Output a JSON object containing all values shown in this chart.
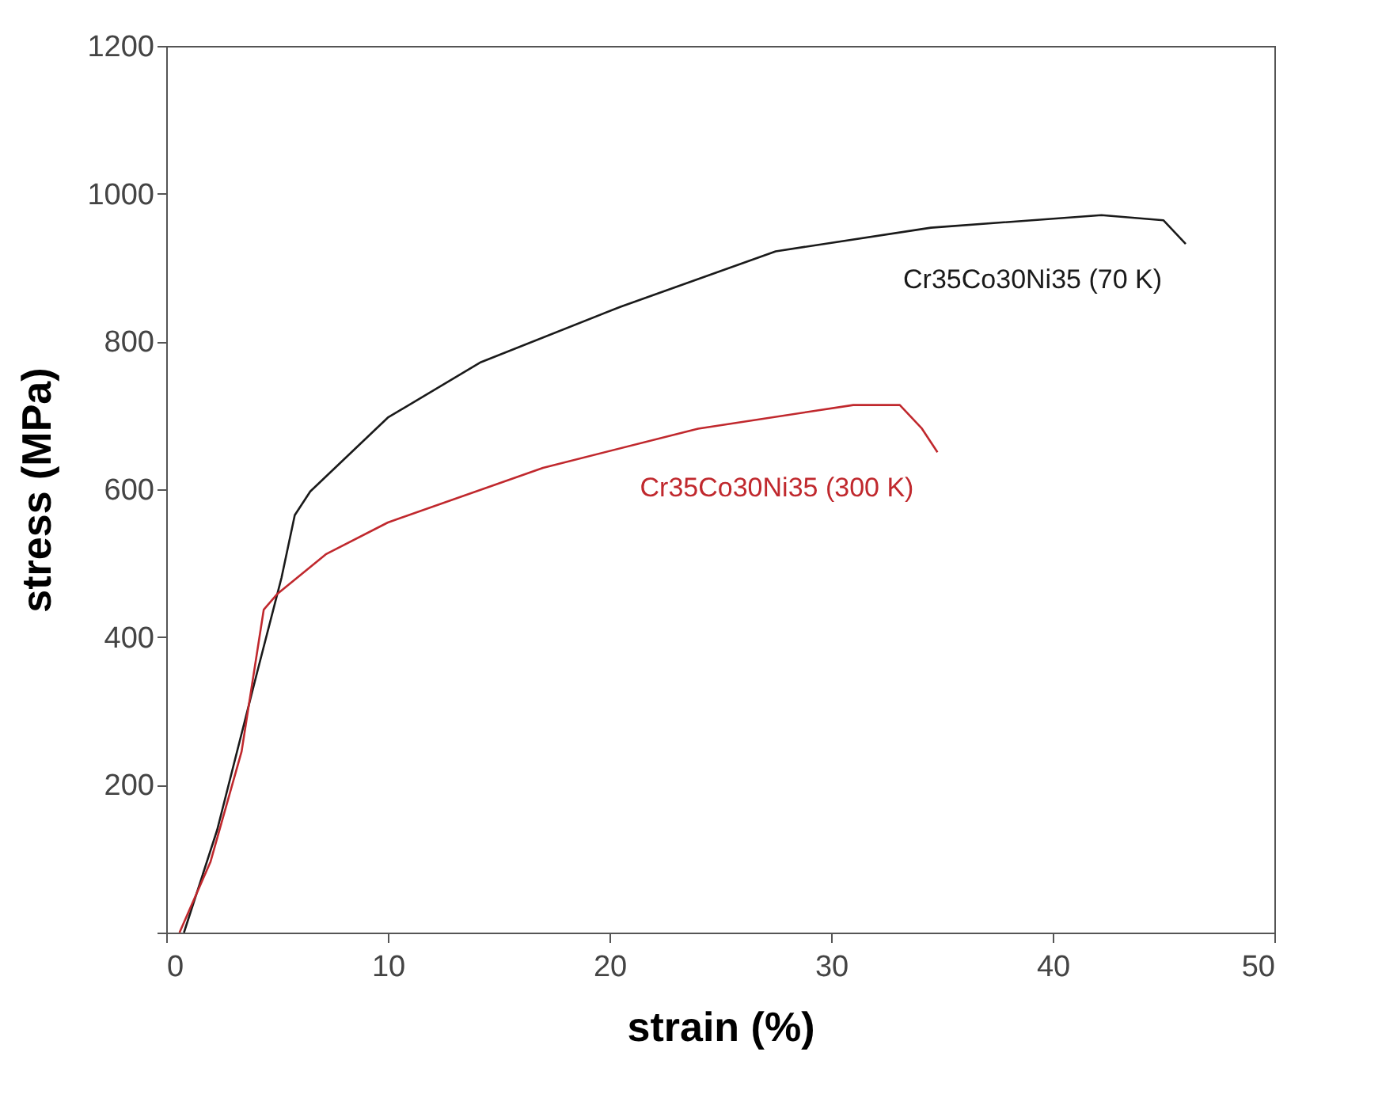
{
  "chart_data": {
    "type": "line",
    "xlabel": "strain (%)",
    "ylabel": "stress (MPa)",
    "xlim": [
      0,
      50
    ],
    "xticks": [
      0,
      10,
      20,
      30,
      40,
      50
    ],
    "ylim": [
      0,
      1200
    ],
    "yticks": [
      {
        "value": 0,
        "label": null
      },
      200,
      400,
      600,
      800,
      1000,
      1200
    ],
    "grid": false,
    "legend": false,
    "marker": "none",
    "line_style": "solid",
    "series": [
      {
        "name": "Cr35Co30Ni35 (70 K)",
        "color": "#1a1a1a",
        "x": [
          0.8,
          2.3,
          4.1,
          5.2,
          5.8,
          6.5,
          10,
          14.2,
          20.5,
          27.5,
          34.5,
          42.2,
          45,
          46
        ],
        "values": [
          0,
          139,
          352,
          480,
          565,
          597,
          697,
          772,
          847,
          922,
          954,
          971,
          964,
          932
        ]
      },
      {
        "name": "Cr35Co30Ni35 (300 K)",
        "color": "#c0282d",
        "x": [
          0.6,
          2,
          3.4,
          4.4,
          5,
          7.2,
          10,
          17,
          24,
          31,
          33.1,
          34.1,
          34.8
        ],
        "values": [
          0,
          96,
          245,
          437,
          458,
          512,
          555,
          629,
          682,
          714,
          714,
          682,
          650
        ]
      }
    ]
  }
}
